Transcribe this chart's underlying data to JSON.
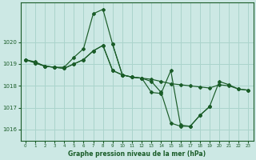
{
  "title": "Graphe pression niveau de la mer (hPa)",
  "bg_color": "#cce8e4",
  "grid_color": "#aad4cc",
  "line_color": "#1a5c28",
  "xlim": [
    -0.5,
    23.5
  ],
  "ylim": [
    1015.5,
    1021.8
  ],
  "yticks": [
    1016,
    1017,
    1018,
    1019,
    1020
  ],
  "xticks": [
    0,
    1,
    2,
    3,
    4,
    5,
    6,
    7,
    8,
    9,
    10,
    11,
    12,
    13,
    14,
    15,
    16,
    17,
    18,
    19,
    20,
    21,
    22,
    23
  ],
  "series": [
    {
      "x": [
        0,
        1,
        2,
        3,
        4,
        5,
        6,
        7,
        8,
        9,
        10
      ],
      "y": [
        1019.2,
        1019.1,
        1018.9,
        1018.85,
        1018.85,
        1019.3,
        1019.7,
        1021.3,
        1021.5,
        1019.9,
        1018.5
      ]
    },
    {
      "x": [
        0,
        1,
        2,
        3,
        4,
        5,
        6,
        7,
        8,
        9,
        10,
        11,
        12,
        13,
        14,
        15,
        16,
        17,
        18,
        19,
        20,
        21,
        22,
        23
      ],
      "y": [
        1019.2,
        1019.05,
        1018.9,
        1018.85,
        1018.8,
        1019.0,
        1019.2,
        1019.6,
        1019.85,
        1018.7,
        1018.5,
        1018.4,
        1018.35,
        1018.3,
        1018.2,
        1018.1,
        1018.05,
        1018.0,
        1017.95,
        1017.9,
        1018.05,
        1018.0,
        1017.85,
        1017.8
      ]
    },
    {
      "x": [
        0,
        1,
        2,
        3,
        4,
        5,
        6,
        7,
        8,
        9,
        10,
        11,
        12,
        13,
        14,
        15,
        16,
        17,
        18,
        19,
        20,
        21,
        22,
        23
      ],
      "y": [
        1019.2,
        1019.05,
        1018.9,
        1018.85,
        1018.8,
        1019.0,
        1019.2,
        1019.6,
        1019.85,
        1018.7,
        1018.5,
        1018.4,
        1018.35,
        1018.2,
        1017.7,
        1016.3,
        1016.15,
        1016.15,
        1016.65,
        1017.05,
        1018.2,
        1018.05,
        1017.85,
        1017.8
      ]
    },
    {
      "x": [
        9,
        10,
        11,
        12,
        13,
        14,
        15,
        16,
        17,
        18,
        19
      ],
      "y": [
        1019.9,
        1018.5,
        1018.4,
        1018.35,
        1017.7,
        1017.65,
        1018.7,
        1016.2,
        1016.15,
        1016.65,
        1017.05
      ]
    }
  ]
}
